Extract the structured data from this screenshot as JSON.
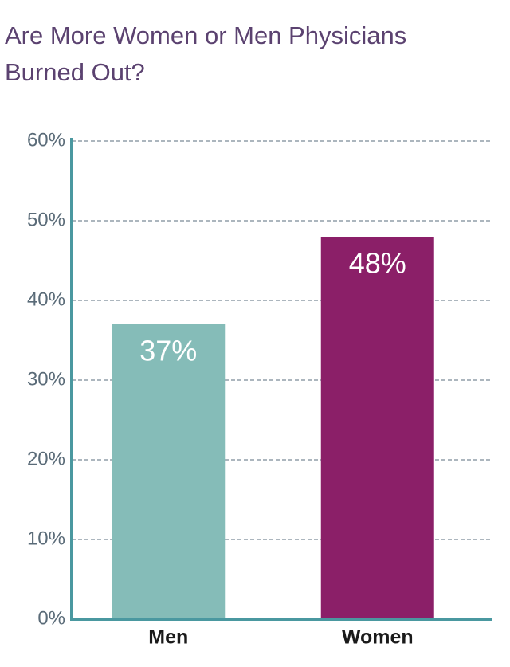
{
  "chart_data": {
    "type": "bar",
    "title": "Are More Women or Men Physicians Burned Out?",
    "categories": [
      "Men",
      "Women"
    ],
    "values": [
      37,
      48
    ],
    "value_labels": [
      "37%",
      "48%"
    ],
    "colors": [
      "#85bcb8",
      "#8b1f68"
    ],
    "ylim": [
      0,
      60
    ],
    "yticks": [
      {
        "value": 0,
        "label": "0%"
      },
      {
        "value": 10,
        "label": "10%"
      },
      {
        "value": 20,
        "label": "20%"
      },
      {
        "value": 30,
        "label": "30%"
      },
      {
        "value": 40,
        "label": "40%"
      },
      {
        "value": 50,
        "label": "50%"
      },
      {
        "value": 60,
        "label": "60%"
      }
    ],
    "grid": true
  }
}
